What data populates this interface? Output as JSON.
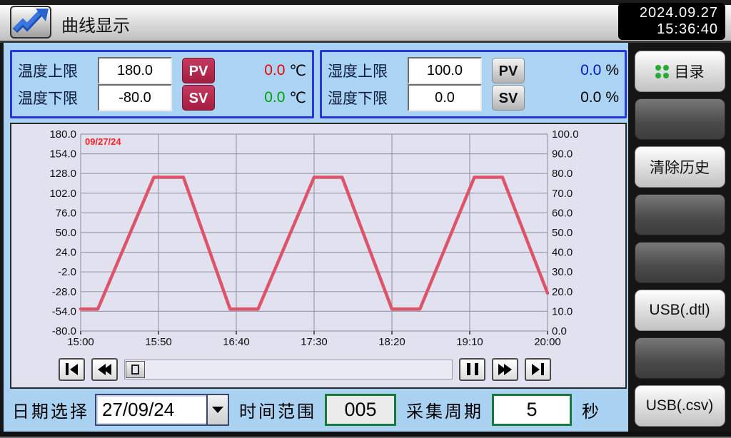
{
  "header": {
    "title": "曲线显示",
    "date": "2024.09.27",
    "time": "15:36:40",
    "icon": "trend-arrow-icon"
  },
  "panels": {
    "temp": {
      "rows": [
        {
          "label": "温度上限",
          "input": "180.0",
          "badge": "PV",
          "value": "0.0",
          "unit": "℃",
          "value_color": "#ee0000"
        },
        {
          "label": "温度下限",
          "input": "-80.0",
          "badge": "SV",
          "value": "0.0",
          "unit": "℃",
          "value_color": "#00a000"
        }
      ],
      "badge_color": "#b02347"
    },
    "hum": {
      "rows": [
        {
          "label": "湿度上限",
          "input": "100.0",
          "badge": "PV",
          "value": "0.0",
          "unit": "%",
          "value_color": "#0018cc"
        },
        {
          "label": "湿度下限",
          "input": "0.0",
          "badge": "SV",
          "value": "0.0",
          "unit": "%",
          "value_color": "#000000"
        }
      ],
      "badge_color": "#cfcfcf"
    }
  },
  "chart_data": {
    "type": "line",
    "annotation": "09/27/24",
    "annotation_color": "#ff2222",
    "x_ticks": [
      "15:00",
      "15:50",
      "16:40",
      "17:30",
      "18:20",
      "19:10",
      "20:00"
    ],
    "x_range_minutes": [
      0,
      300
    ],
    "left_axis": {
      "label": "temperature",
      "ticks": [
        180.0,
        154.0,
        128.0,
        102.0,
        76.0,
        50.0,
        24.0,
        -2.0,
        -28.0,
        -54.0,
        -80.0
      ],
      "range": [
        -80,
        180
      ]
    },
    "right_axis": {
      "label": "humidity",
      "ticks": [
        100.0,
        90.0,
        80.0,
        70.0,
        60.0,
        50.0,
        40.0,
        30.0,
        20.0,
        10.0,
        0.0
      ],
      "range": [
        0,
        100
      ]
    },
    "grid": true,
    "series": [
      {
        "name": "temperature-history",
        "color": "#dd5468",
        "axis": "left",
        "points": [
          [
            0,
            -51
          ],
          [
            11,
            -51
          ],
          [
            47,
            123
          ],
          [
            66,
            123
          ],
          [
            96,
            -51
          ],
          [
            114,
            -51
          ],
          [
            150,
            123
          ],
          [
            168,
            123
          ],
          [
            200,
            -51
          ],
          [
            218,
            -51
          ],
          [
            253,
            123
          ],
          [
            271,
            123
          ],
          [
            300,
            -30
          ]
        ]
      }
    ]
  },
  "playback": {
    "buttons": [
      "skip-to-start",
      "rewind",
      "pause",
      "fast-forward",
      "skip-to-end"
    ],
    "slider": "timeline-slider"
  },
  "bottom": {
    "date_label": "日期选择",
    "date_value": "27/09/24",
    "range_label": "时间范围",
    "range_value": "005",
    "period_label": "采集周期",
    "period_value": "5",
    "unit": "秒"
  },
  "sidebar": {
    "accent_green": "#23ad35",
    "buttons": [
      {
        "label": "目录",
        "style": "light",
        "icon": "grid-dots-icon"
      },
      {
        "label": "",
        "style": "dark"
      },
      {
        "label": "清除历史",
        "style": "light"
      },
      {
        "label": "",
        "style": "dark"
      },
      {
        "label": "",
        "style": "dark"
      },
      {
        "label": "USB(.dtl)",
        "style": "light"
      },
      {
        "label": "",
        "style": "dark"
      },
      {
        "label": "USB(.csv)",
        "style": "light"
      }
    ]
  }
}
